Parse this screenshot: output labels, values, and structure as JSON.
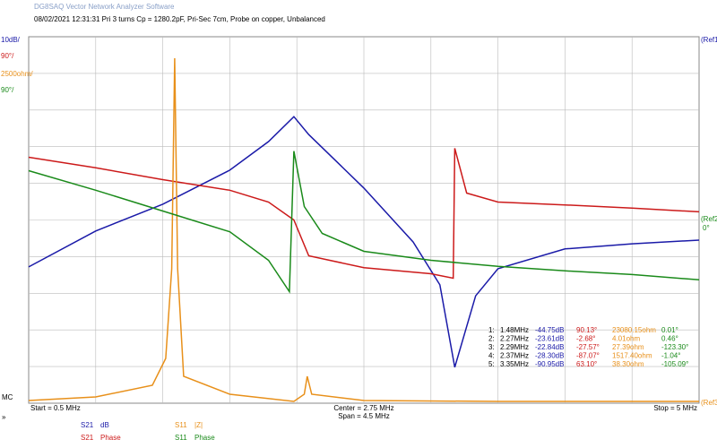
{
  "chart_data": {
    "type": "line",
    "title": "DG8SAQ Vector Network Analyzer Software",
    "subtitle": "08/02/2021   12:31:31   Pri 3 turns Cp = 1280.2pF, Pri-Sec 7cm, Probe on copper, Unbalanced",
    "xlim": [
      0.5,
      5
    ],
    "grid": true,
    "footer": {
      "start": "Start = 0.5 MHz",
      "center": "Center = 2.75 MHz",
      "span": "Span = 4.5 MHz",
      "stop": "Stop = 5 MHz"
    },
    "side_labels": {
      "mc": "MC",
      "more": "»",
      "ref1": "(Ref1",
      "ref2": "(Ref2",
      "ref2_value": "0°",
      "ref3": "(Ref3"
    },
    "series": [
      {
        "name": "S21",
        "format": "dB",
        "scale": "10dB/",
        "color": "#1a1aa8",
        "ylim": [
          -100,
          0
        ],
        "x": [
          0.5,
          0.95,
          1.4,
          1.85,
          2.11,
          2.28,
          2.38,
          2.75,
          3.08,
          3.26,
          3.36,
          3.5,
          3.65,
          4.1,
          4.55,
          5.0
        ],
        "values": [
          -62.8,
          -53,
          -45.7,
          -36.4,
          -28.6,
          -21.8,
          -26.7,
          -41.3,
          -56,
          -67.7,
          -90.2,
          -70.7,
          -63.3,
          -57.9,
          -56.5,
          -55.5
        ]
      },
      {
        "name": "S21",
        "format": "Phase",
        "scale": "90°/",
        "color": "#cc1a1a",
        "ylim": [
          -450,
          450
        ],
        "x": [
          0.5,
          0.95,
          1.4,
          1.85,
          2.11,
          2.28,
          2.38,
          2.75,
          3.2,
          3.35,
          3.36,
          3.44,
          3.65,
          4.1,
          4.55,
          5.0
        ],
        "values": [
          154,
          128,
          99,
          73,
          44,
          0,
          -88,
          -117,
          -132,
          -143,
          176,
          66,
          44,
          37,
          29,
          20
        ]
      },
      {
        "name": "S11",
        "format": "|Z|",
        "scale": "2500ohm/",
        "color": "#e8901a",
        "ylim": [
          0,
          25000
        ],
        "x": [
          0.5,
          0.95,
          1.33,
          1.42,
          1.46,
          1.48,
          1.5,
          1.54,
          1.85,
          2.28,
          2.35,
          2.37,
          2.4,
          2.75,
          3.65,
          5.0
        ],
        "values": [
          183,
          428,
          1222,
          3056,
          9169,
          23533,
          9169,
          1834,
          611,
          122,
          611,
          1834,
          611,
          183,
          122,
          122
        ]
      },
      {
        "name": "S11",
        "format": "Phase",
        "scale": "90°/",
        "color": "#1a8a1a",
        "ylim": [
          -450,
          450
        ],
        "x": [
          0.5,
          0.95,
          1.4,
          1.85,
          2.11,
          2.25,
          2.28,
          2.35,
          2.47,
          2.75,
          3.2,
          3.65,
          4.1,
          4.55,
          5.0
        ],
        "values": [
          121,
          73,
          22,
          -29,
          -99,
          -176,
          169,
          33,
          -33,
          -77,
          -99,
          -114,
          -125,
          -134,
          -147
        ]
      }
    ],
    "markers": [
      [
        "1:",
        "1.48MHz",
        "-44.75dB",
        "90.13°",
        "23080.15ohm",
        "0.01°"
      ],
      [
        "2:",
        "2.27MHz",
        "-23.61dB",
        "-2.68°",
        "4.01ohm",
        "0.46°"
      ],
      [
        "3:",
        "2.29MHz",
        "-22.84dB",
        "-27.57°",
        "27.39ohm",
        "-123.30°"
      ],
      [
        "4:",
        "2.37MHz",
        "-28.30dB",
        "-87.07°",
        "1517.40ohm",
        "-1.04°"
      ],
      [
        "5:",
        "3.35MHz",
        "-90.95dB",
        "63.10°",
        "38.30ohm",
        "-105.09°"
      ]
    ]
  }
}
